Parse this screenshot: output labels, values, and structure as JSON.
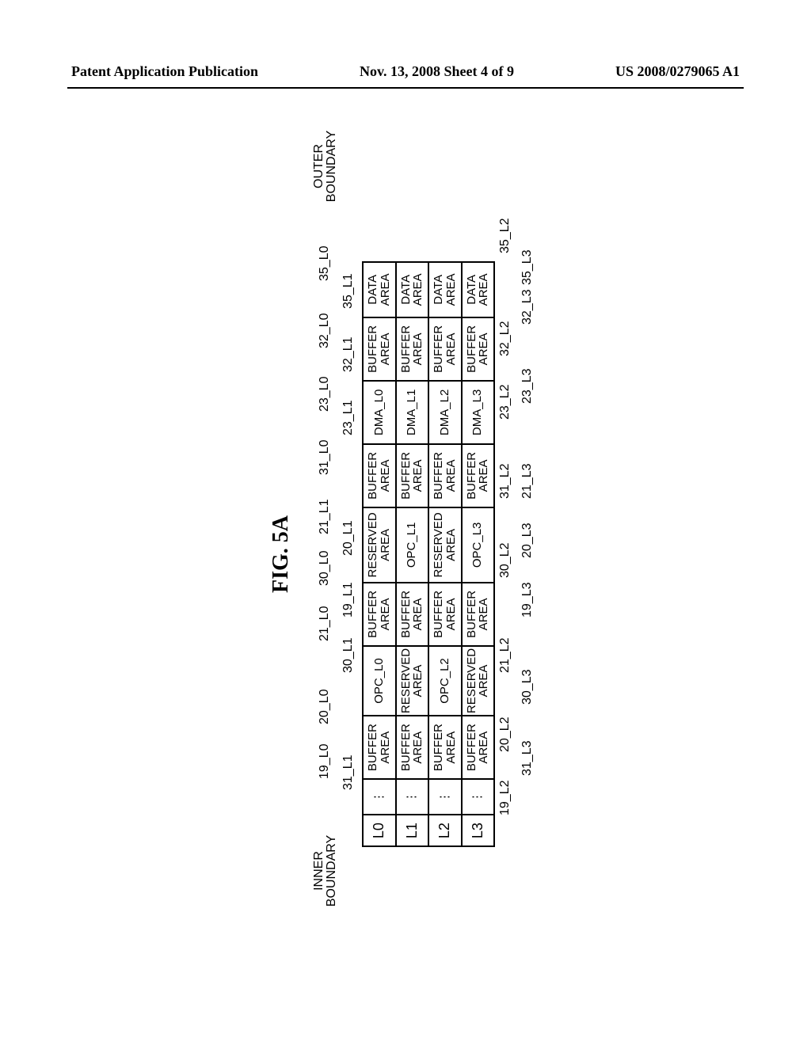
{
  "header": {
    "left": "Patent Application Publication",
    "center": "Nov. 13, 2008  Sheet 4 of 9",
    "right": "US 2008/0279065 A1"
  },
  "figure": {
    "title": "FIG. 5A",
    "inner_boundary_label": "INNER BOUNDARY",
    "outer_boundary_label": "OUTER BOUNDARY",
    "top_refs": [
      "19_L0",
      "20_L0",
      "21_L0",
      "30_L0",
      "21_L1",
      "31_L0",
      "23_L0",
      "32_L0",
      "35_L0"
    ],
    "mid_refs": [
      "31_L1",
      "30_L1",
      "19_L1",
      "20_L1",
      "23_L1",
      "32_L1",
      "35_L1"
    ],
    "bot_refs_l2": [
      "19_L2",
      "20_L2",
      "21_L2",
      "30_L2",
      "31_L2",
      "23_L2",
      "32_L2",
      "35_L2"
    ],
    "bot_refs_l3": [
      "31_L3",
      "30_L3",
      "19_L3",
      "20_L3",
      "21_L3",
      "23_L3",
      "32_L3",
      "35_L3"
    ],
    "rows": [
      {
        "layer": "L0",
        "cells": [
          "⋮",
          "BUFFER AREA",
          "OPC_L0",
          "BUFFER AREA",
          "RESERVED AREA",
          "BUFFER AREA",
          "DMA_L0",
          "BUFFER AREA",
          "DATA AREA"
        ]
      },
      {
        "layer": "L1",
        "cells": [
          "⋮",
          "BUFFER AREA",
          "RESERVED AREA",
          "BUFFER AREA",
          "OPC_L1",
          "BUFFER AREA",
          "DMA_L1",
          "BUFFER AREA",
          "DATA AREA"
        ]
      },
      {
        "layer": "L2",
        "cells": [
          "⋮",
          "BUFFER AREA",
          "OPC_L2",
          "BUFFER AREA",
          "RESERVED AREA",
          "BUFFER AREA",
          "DMA_L2",
          "BUFFER AREA",
          "DATA AREA"
        ]
      },
      {
        "layer": "L3",
        "cells": [
          "⋮",
          "BUFFER AREA",
          "RESERVED AREA",
          "BUFFER AREA",
          "OPC_L3",
          "BUFFER AREA",
          "DMA_L3",
          "BUFFER AREA",
          "DATA AREA"
        ]
      }
    ],
    "cell_labels": {
      "buffer": "BUFFER AREA",
      "reserved": "RESERVED AREA",
      "data": "DATA AREA"
    }
  },
  "style": {
    "page_bg": "#ffffff",
    "line_color": "#000000",
    "header_fontsize": 18,
    "body_fontsize": 15
  }
}
